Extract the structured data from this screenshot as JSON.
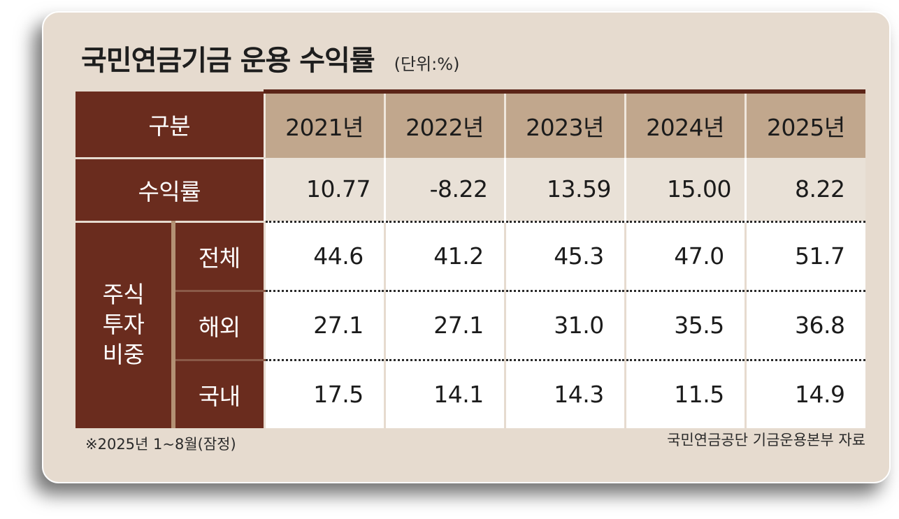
{
  "title": "국민연금기금 운용 수익률",
  "unit": "(단위:%)",
  "table": {
    "header_label": "구분",
    "years": [
      "2021년",
      "2022년",
      "2023년",
      "2024년",
      "2025년"
    ],
    "return_label": "수익률",
    "returns": [
      "10.77",
      "-8.22",
      "13.59",
      "15.00",
      "8.22"
    ],
    "stock_group_label": "주식\n투자\n비중",
    "stock_rows": [
      {
        "label": "전체",
        "values": [
          "44.6",
          "41.2",
          "45.3",
          "47.0",
          "51.7"
        ]
      },
      {
        "label": "해외",
        "values": [
          "27.1",
          "27.1",
          "31.0",
          "35.5",
          "36.8"
        ]
      },
      {
        "label": "국내",
        "values": [
          "17.5",
          "14.1",
          "14.3",
          "11.5",
          "14.9"
        ]
      }
    ]
  },
  "footnote": "※2025년 1~8월(잠정)",
  "source": "국민연금공단 기금운용본부 자료"
}
